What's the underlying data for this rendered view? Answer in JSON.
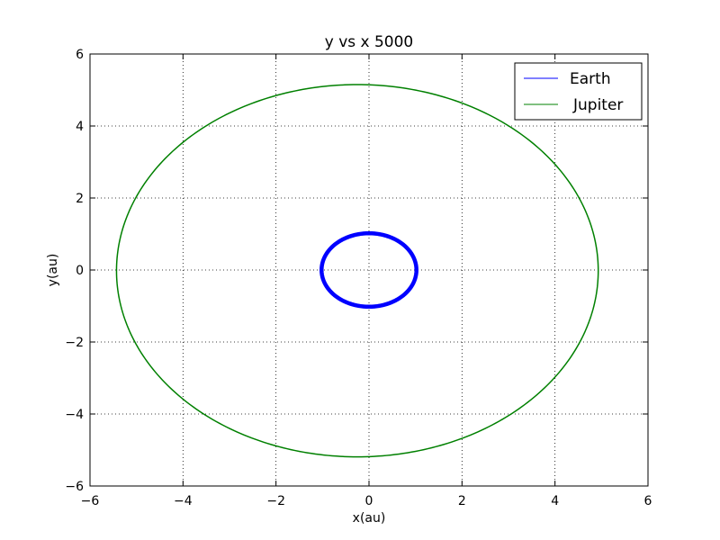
{
  "chart_data": {
    "type": "line",
    "title": "y vs x  5000",
    "xlabel": "x(au)",
    "ylabel": "y(au)",
    "xlim": [
      -6,
      6
    ],
    "ylim": [
      -6,
      6
    ],
    "xticks": [
      -6,
      -4,
      -2,
      0,
      2,
      4,
      6
    ],
    "yticks": [
      -6,
      -4,
      -2,
      0,
      2,
      4,
      6
    ],
    "xtick_labels": [
      "−6",
      "−4",
      "−2",
      "0",
      "2",
      "4",
      "6"
    ],
    "ytick_labels": [
      "−6",
      "−4",
      "−2",
      "0",
      "2",
      "4",
      "6"
    ],
    "grid": true,
    "legend": {
      "position": "upper-right"
    },
    "series": [
      {
        "name": "Earth",
        "color": "#0000ff",
        "orbit": {
          "center": [
            0.0,
            0.0
          ],
          "semi_major_x": 1.02,
          "semi_minor_y": 1.02,
          "x_min": -1.02,
          "x_max": 1.02,
          "y_min": -1.02,
          "y_max": 1.02
        }
      },
      {
        "name": "Jupiter",
        "color": "#008000",
        "orbit": {
          "center": [
            -0.25,
            -0.02
          ],
          "semi_major_x": 5.18,
          "semi_minor_y": 5.17,
          "x_min": -5.43,
          "x_max": 4.93,
          "y_min": -5.19,
          "y_max": 5.15
        }
      }
    ]
  }
}
